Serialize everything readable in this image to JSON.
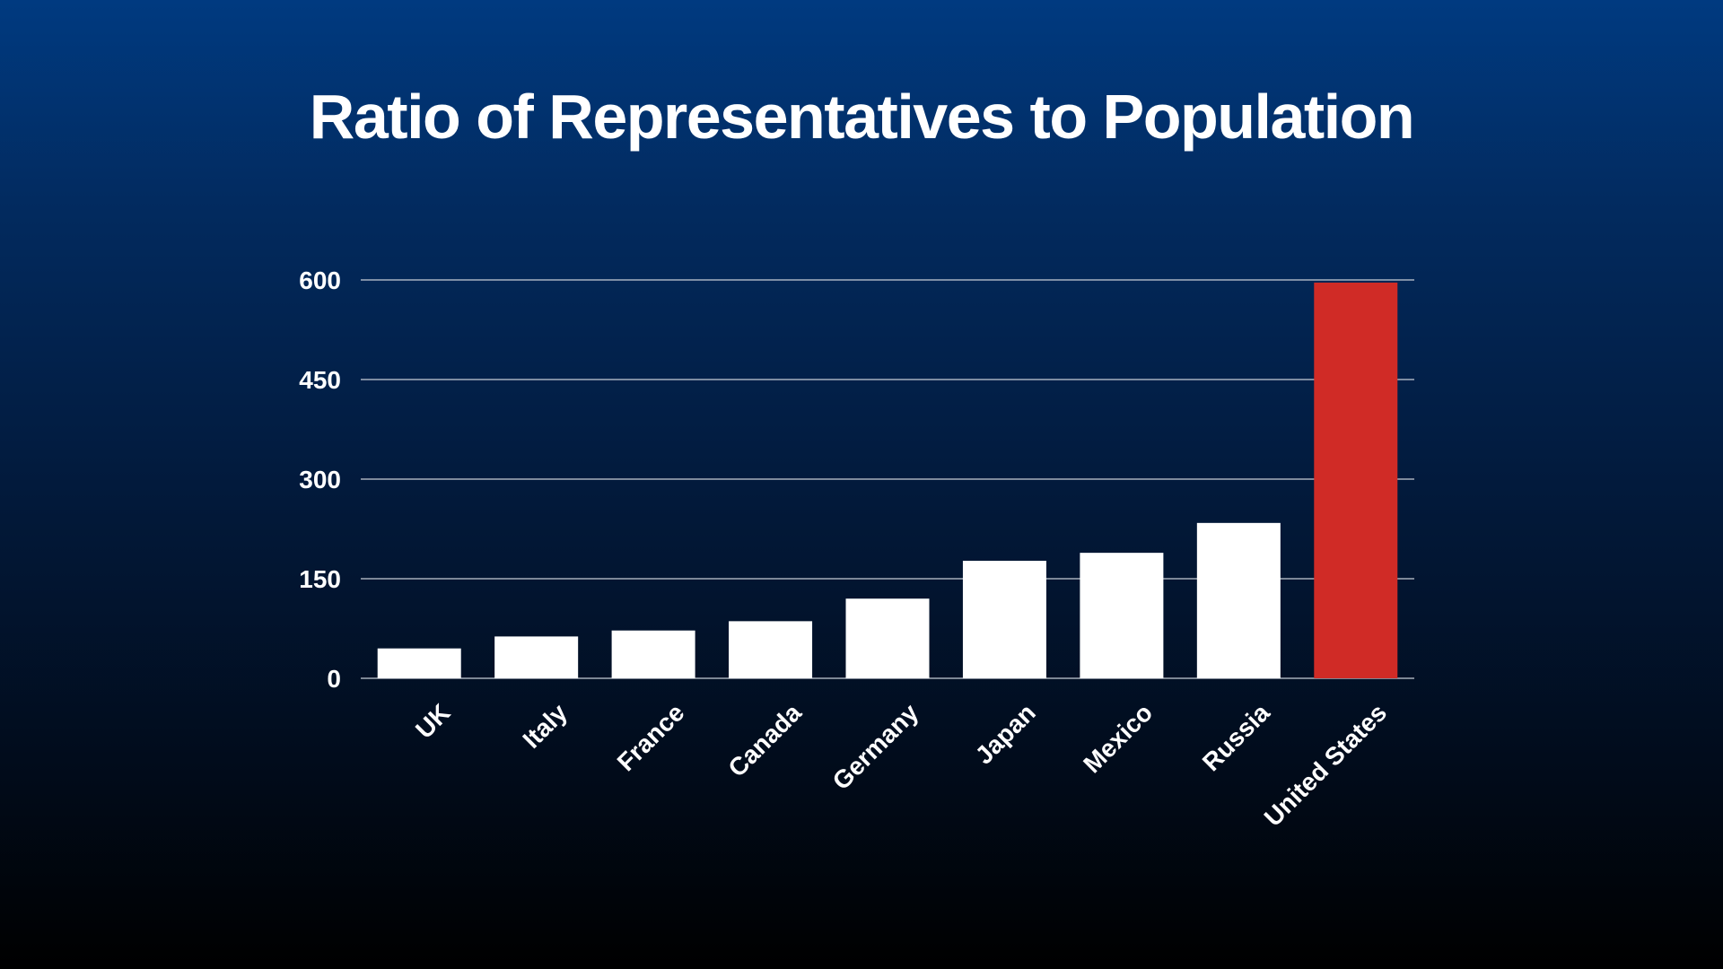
{
  "slide": {
    "title": "Ratio of Representatives to Population"
  },
  "colors": {
    "default_bar": "#ffffff",
    "highlight_bar": "#d02b26",
    "gridline": "#c8cdd6",
    "text": "#ffffff"
  },
  "chart_data": {
    "type": "bar",
    "title": "Ratio of Representatives to Population",
    "xlabel": "",
    "ylabel": "",
    "categories": [
      "UK",
      "Italy",
      "France",
      "Canada",
      "Germany",
      "Japan",
      "Mexico",
      "Russia",
      "United States"
    ],
    "values": [
      45,
      63,
      72,
      86,
      120,
      177,
      189,
      234,
      596
    ],
    "highlight": "United States",
    "ylim": [
      0,
      600
    ],
    "yticks": [
      0,
      150,
      300,
      450,
      600
    ],
    "grid": true,
    "legend": "none"
  }
}
